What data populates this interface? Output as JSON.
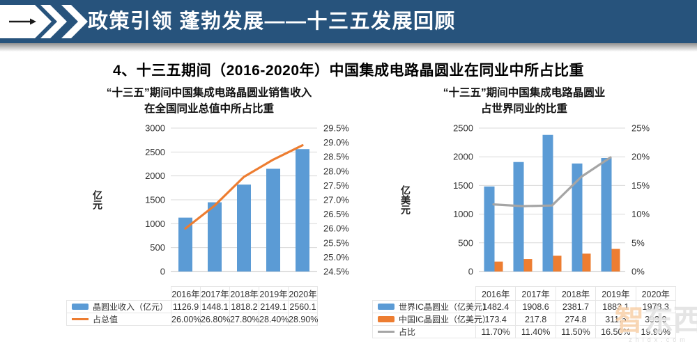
{
  "banner": {
    "title": "政策引领 蓬勃发展——十三五发展回顾",
    "bg_color": "#27537C"
  },
  "slide": {
    "title": "4、十三五期间（2016-2020年）中国集成电路晶圆业在同业中所占比重"
  },
  "colors": {
    "bar_blue": "#5B9BD5",
    "bar_orange": "#ED7D31",
    "line_orange": "#ED7D31",
    "line_gray": "#A5A5A5",
    "grid": "#D9D9D9",
    "axis_line": "#BFBFBF",
    "axis_text": "#333333"
  },
  "watermark": {
    "char_accent": "智",
    "chars_rest": "东西",
    "subtext": "zhidx.com"
  },
  "chart_data": [
    {
      "type": "bar",
      "subtype": "bar+line combo",
      "title_lines": [
        "“十三五”期间中国集成电路晶圆业销售收入",
        "在全国同业总值中所占比重"
      ],
      "categories": [
        "2016年",
        "2017年",
        "2018年",
        "2019年",
        "2020年"
      ],
      "y_left": {
        "label": "亿元",
        "min": 0,
        "max": 3000,
        "step": 500
      },
      "y_right": {
        "min": 24.5,
        "max": 29.5,
        "step": 0.5,
        "decimals": 1,
        "suffix": "%"
      },
      "grid": true,
      "legend_position": "table-left",
      "series": [
        {
          "name": "晶圆业收入（亿元）",
          "kind": "bar",
          "axis": "left",
          "color": "#5B9BD5",
          "values": [
            1126.9,
            1448.1,
            1818.2,
            2149.1,
            2560.1
          ],
          "labels": [
            "1126.9",
            "1448.1",
            "1818.2",
            "2149.1",
            "2560.1"
          ]
        },
        {
          "name": "占总值",
          "kind": "line",
          "axis": "right",
          "color": "#ED7D31",
          "values": [
            26.0,
            26.8,
            27.8,
            28.4,
            28.9
          ],
          "labels": [
            "26.00%",
            "26.80%",
            "27.80%",
            "28.40%",
            "28.90%"
          ]
        }
      ]
    },
    {
      "type": "bar",
      "subtype": "bar+line combo",
      "title_lines": [
        "“十三五”期间中国集成电路晶圆业",
        "占世界同业的比重"
      ],
      "categories": [
        "2016年",
        "2017年",
        "2018年",
        "2019年",
        "2020年"
      ],
      "y_left": {
        "label": "亿美元",
        "min": 0,
        "max": 2500,
        "step": 500
      },
      "y_right": {
        "min": 0,
        "max": 25,
        "step": 5,
        "decimals": 0,
        "suffix": "%"
      },
      "grid": true,
      "legend_position": "table-left",
      "series": [
        {
          "name": "世界IC晶圆业（亿美元）",
          "kind": "bar",
          "axis": "left",
          "color": "#5B9BD5",
          "values": [
            1482.4,
            1908.6,
            2381.7,
            1883.1,
            1978.3
          ],
          "labels": [
            "1482.4",
            "1908.6",
            "2381.7",
            "1883.1",
            "1978.3"
          ]
        },
        {
          "name": "中国IC晶圆业（亿美元）",
          "kind": "bar",
          "axis": "left",
          "color": "#ED7D31",
          "values": [
            173.4,
            217.8,
            274.8,
            311.5,
            393.9
          ],
          "labels": [
            "173.4",
            "217.8",
            "274.8",
            "311.5",
            "393.9"
          ]
        },
        {
          "name": "占比",
          "kind": "line",
          "axis": "right",
          "color": "#A5A5A5",
          "values": [
            11.7,
            11.4,
            11.5,
            16.5,
            19.9
          ],
          "labels": [
            "11.70%",
            "11.40%",
            "11.50%",
            "16.50%",
            "19.90%"
          ]
        }
      ]
    }
  ]
}
